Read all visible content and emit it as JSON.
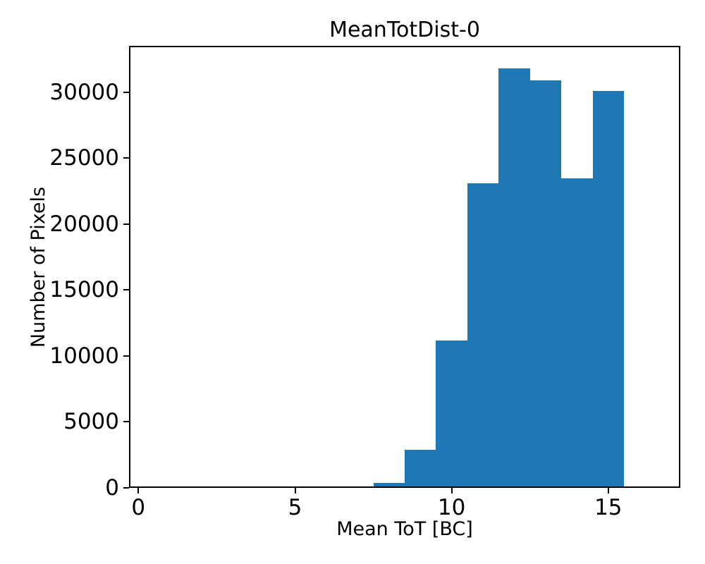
{
  "chart_data": {
    "type": "bar",
    "subtype": "histogram",
    "title": "MeanTotDist-0",
    "xlabel": "Mean ToT [BC]",
    "ylabel": "Number of Pixels",
    "bar_color": "#1f77b4",
    "background_color": "#ffffff",
    "grid": false,
    "legend": null,
    "xlim": [
      -0.3,
      17.3
    ],
    "ylim": [
      0,
      33500
    ],
    "xticks": [
      0,
      5,
      10,
      15
    ],
    "yticks": [
      0,
      5000,
      10000,
      15000,
      20000,
      25000,
      30000
    ],
    "bin_edges": [
      6.5,
      7.5,
      8.5,
      9.5,
      10.5,
      11.5,
      12.5,
      13.5,
      14.5,
      15.5
    ],
    "counts": [
      90,
      380,
      2900,
      11150,
      23100,
      31800,
      30900,
      23450,
      30100
    ]
  }
}
